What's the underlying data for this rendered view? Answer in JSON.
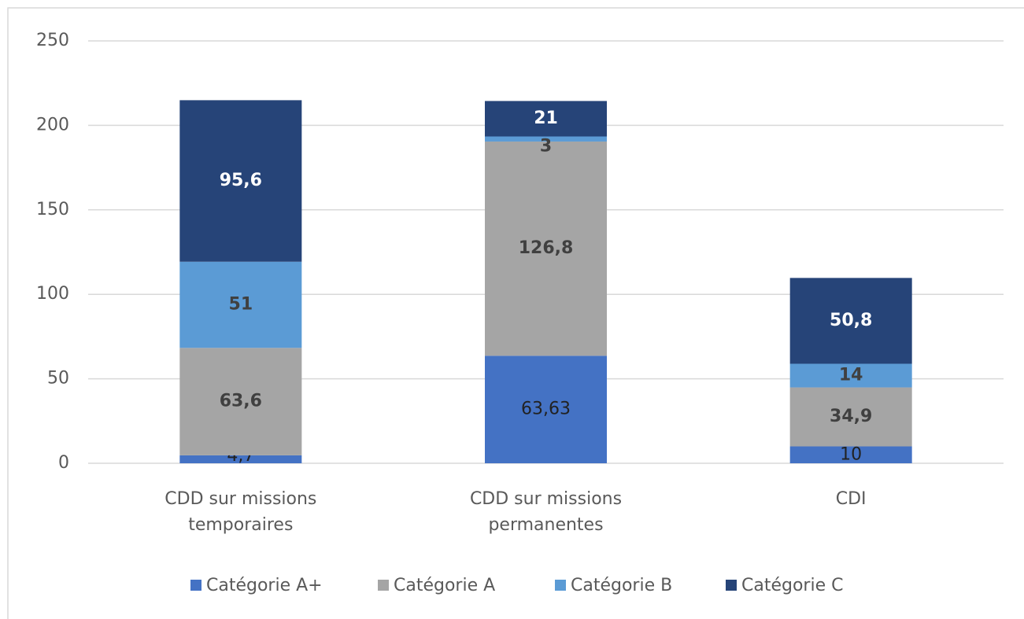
{
  "chart_data": {
    "type": "stacked_bar",
    "categories": [
      "CDD sur missions temporaires",
      "CDD sur missions permanentes",
      "CDI"
    ],
    "series": [
      {
        "name": "Catégorie A+",
        "color": "#4472c4",
        "values": [
          4.7,
          63.63,
          10
        ],
        "value_labels": [
          "4,7",
          "63,63",
          "10"
        ]
      },
      {
        "name": "Catégorie A",
        "color": "#a5a5a5",
        "values": [
          63.6,
          126.8,
          34.9
        ],
        "value_labels": [
          "63,6",
          "126,8",
          "34,9"
        ]
      },
      {
        "name": "Catégorie B",
        "color": "#5b9bd5",
        "values": [
          51,
          3,
          14
        ],
        "value_labels": [
          "51",
          "3",
          "14"
        ]
      },
      {
        "name": "Catégorie C",
        "color": "#264478",
        "values": [
          95.6,
          21,
          50.8
        ],
        "value_labels": [
          "95,6",
          "21",
          "50,8"
        ]
      }
    ],
    "ylim": [
      0,
      250
    ],
    "yticks": [
      0,
      50,
      100,
      150,
      200,
      250
    ],
    "grid": true,
    "legend": "bottom"
  }
}
